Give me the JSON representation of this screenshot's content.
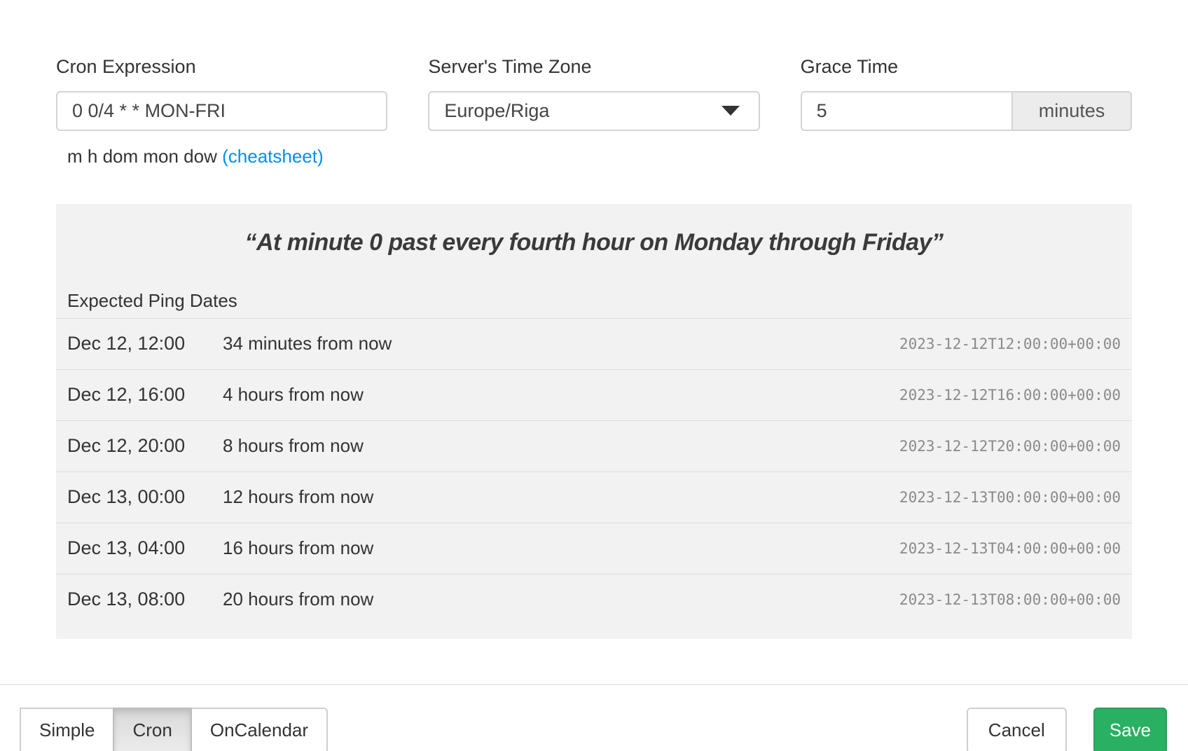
{
  "form": {
    "cron": {
      "label": "Cron Expression",
      "value": "0 0/4 * * MON-FRI",
      "help_text": "m h dom mon dow",
      "help_link": "(cheatsheet)"
    },
    "timezone": {
      "label": "Server's Time Zone",
      "selected": "Europe/Riga"
    },
    "grace": {
      "label": "Grace Time",
      "value": "5",
      "unit": "minutes"
    }
  },
  "preview": {
    "description": "“At minute 0 past every fourth hour on Monday through Friday”",
    "subtitle": "Expected Ping Dates",
    "pings": [
      {
        "date": "Dec 12, 12:00",
        "relative": "34 minutes from now",
        "iso": "2023-12-12T12:00:00+00:00"
      },
      {
        "date": "Dec 12, 16:00",
        "relative": "4 hours from now",
        "iso": "2023-12-12T16:00:00+00:00"
      },
      {
        "date": "Dec 12, 20:00",
        "relative": "8 hours from now",
        "iso": "2023-12-12T20:00:00+00:00"
      },
      {
        "date": "Dec 13, 00:00",
        "relative": "12 hours from now",
        "iso": "2023-12-13T00:00:00+00:00"
      },
      {
        "date": "Dec 13, 04:00",
        "relative": "16 hours from now",
        "iso": "2023-12-13T04:00:00+00:00"
      },
      {
        "date": "Dec 13, 08:00",
        "relative": "20 hours from now",
        "iso": "2023-12-13T08:00:00+00:00"
      }
    ]
  },
  "footer": {
    "modes": [
      {
        "label": "Simple",
        "active": false
      },
      {
        "label": "Cron",
        "active": true
      },
      {
        "label": "OnCalendar",
        "active": false
      }
    ],
    "cancel_label": "Cancel",
    "save_label": "Save"
  },
  "colors": {
    "save_green": "#2ab062",
    "link_blue": "#0091ea",
    "panel_gray": "#f2f2f2"
  }
}
